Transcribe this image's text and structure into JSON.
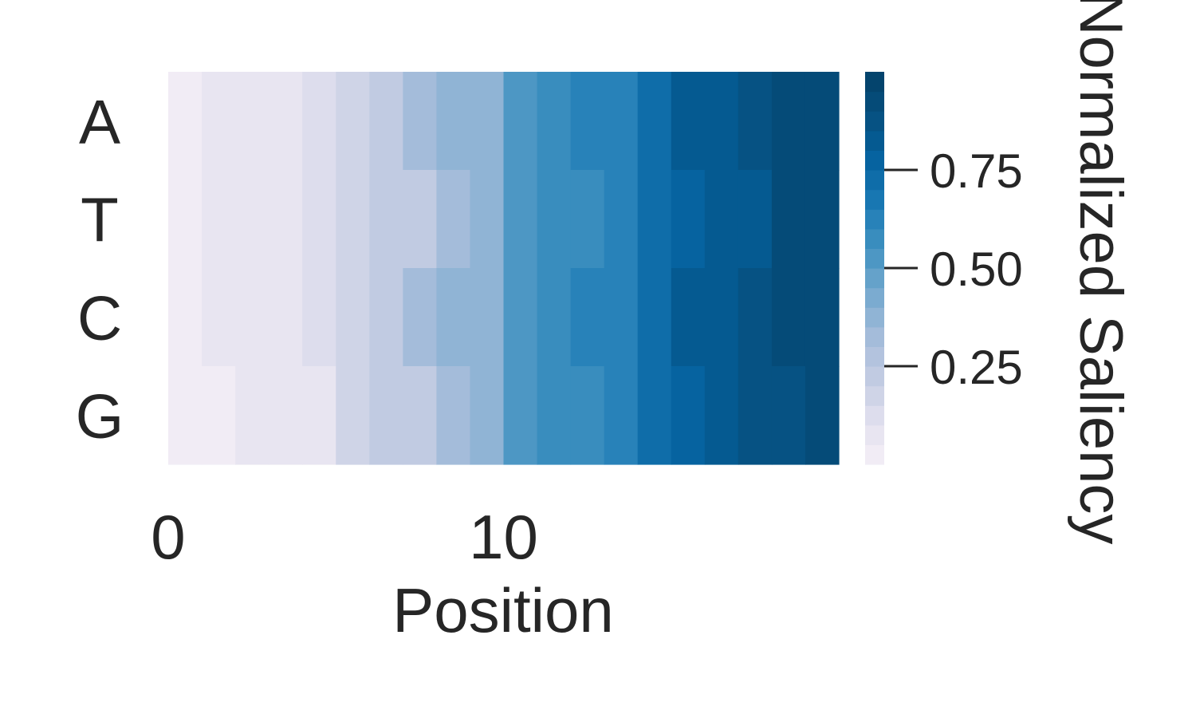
{
  "chart_data": {
    "type": "heatmap",
    "title": "",
    "xlabel": "Position",
    "ylabel": "",
    "rows": [
      "A",
      "T",
      "C",
      "G"
    ],
    "x": [
      0,
      1,
      2,
      3,
      4,
      5,
      6,
      7,
      8,
      9,
      10,
      11,
      12,
      13,
      14,
      15,
      16,
      17,
      18,
      19
    ],
    "x_tick_labels": [
      "0",
      "10"
    ],
    "x_tick_values": [
      0,
      10
    ],
    "values": [
      [
        0.02,
        0.05,
        0.05,
        0.07,
        0.1,
        0.18,
        0.24,
        0.3,
        0.38,
        0.38,
        0.5,
        0.56,
        0.63,
        0.63,
        0.7,
        0.8,
        0.8,
        0.86,
        0.93,
        0.93
      ],
      [
        0.02,
        0.05,
        0.05,
        0.07,
        0.1,
        0.18,
        0.24,
        0.24,
        0.3,
        0.38,
        0.5,
        0.56,
        0.56,
        0.63,
        0.7,
        0.76,
        0.8,
        0.8,
        0.93,
        0.93
      ],
      [
        0.02,
        0.05,
        0.05,
        0.07,
        0.1,
        0.18,
        0.24,
        0.3,
        0.38,
        0.38,
        0.5,
        0.56,
        0.63,
        0.63,
        0.7,
        0.8,
        0.8,
        0.86,
        0.93,
        0.93
      ],
      [
        0.02,
        0.02,
        0.05,
        0.07,
        0.07,
        0.18,
        0.24,
        0.24,
        0.3,
        0.38,
        0.5,
        0.56,
        0.56,
        0.63,
        0.7,
        0.76,
        0.8,
        0.86,
        0.86,
        0.93
      ]
    ],
    "colorbar": {
      "label": "Normalized Saliency",
      "ticks": [
        0.25,
        0.5,
        0.75
      ],
      "tick_labels": [
        "0.25",
        "0.50",
        "0.75"
      ],
      "range": [
        0.0,
        1.0
      ],
      "levels": 20,
      "colormap_stops": [
        "#f6eff7",
        "#e1e0ee",
        "#c2cbe2",
        "#a2bbd9",
        "#73a8ce",
        "#3f91c0",
        "#1a79b4",
        "#05629f",
        "#06507f",
        "#034168"
      ]
    },
    "legend": "none",
    "grid": false
  }
}
